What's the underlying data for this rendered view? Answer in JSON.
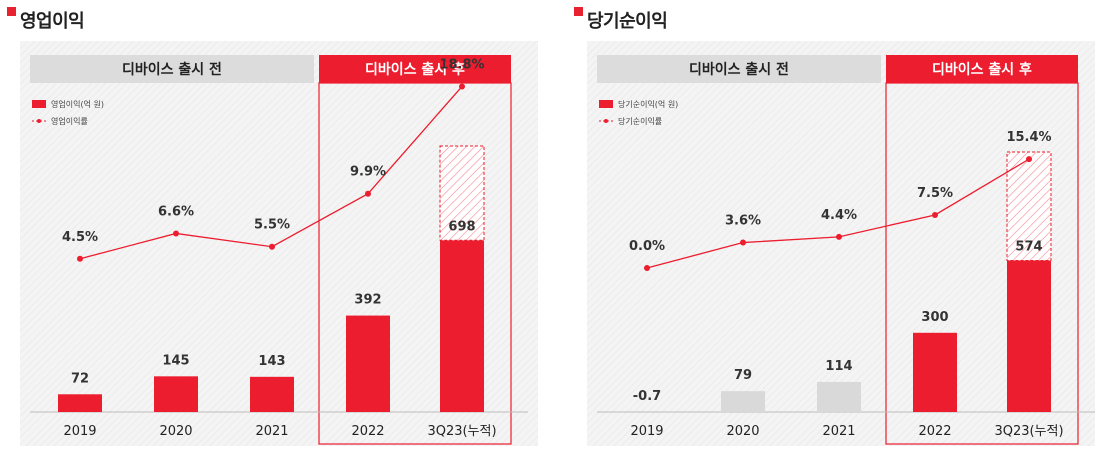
{
  "colors": {
    "accent": "#ec1d2e",
    "before_bar": "#d9d9d9",
    "header_before": "#dcdcdc"
  },
  "charts": [
    {
      "title": "영업이익",
      "header_before": "디바이스 출시 전",
      "header_after": "디바이스 출시 후",
      "legend_bar": "영업이익(억 원)",
      "legend_line": "영업이익률"
    },
    {
      "title": "당기순이익",
      "header_before": "디바이스 출시 전",
      "header_after": "디바이스 출시 후",
      "legend_bar": "당기순이익(억 원)",
      "legend_line": "당기순이익률"
    }
  ],
  "chart_data": [
    {
      "type": "bar",
      "title": "영업이익",
      "categories": [
        "2019",
        "2020",
        "2021",
        "2022",
        "3Q23(누적)"
      ],
      "series": [
        {
          "name": "영업이익(억 원)",
          "values": [
            72,
            145,
            143,
            392,
            698
          ],
          "labels": [
            "72",
            "145",
            "143",
            "392",
            "698"
          ]
        },
        {
          "name": "영업이익률",
          "type": "line",
          "values": [
            4.5,
            6.6,
            5.5,
            9.9,
            18.8
          ],
          "labels": [
            "4.5%",
            "6.6%",
            "5.5%",
            "9.9%",
            "18.8%"
          ]
        }
      ],
      "bar_fill": [
        "accent",
        "accent",
        "accent",
        "accent",
        "accent"
      ],
      "hatched_extension_on_last": true
    },
    {
      "type": "bar",
      "title": "당기순이익",
      "categories": [
        "2019",
        "2020",
        "2021",
        "2022",
        "3Q23(누적)"
      ],
      "series": [
        {
          "name": "당기순이익(억 원)",
          "values": [
            -0.7,
            79,
            114,
            300,
            574
          ],
          "labels": [
            "-0.7",
            "79",
            "114",
            "300",
            "574"
          ]
        },
        {
          "name": "당기순이익률",
          "type": "line",
          "values": [
            0.0,
            3.6,
            4.4,
            7.5,
            15.4
          ],
          "labels": [
            "0.0%",
            "3.6%",
            "4.4%",
            "7.5%",
            "15.4%"
          ]
        }
      ],
      "bar_fill": [
        "gray",
        "gray",
        "gray",
        "accent",
        "accent"
      ],
      "hatched_extension_on_last": true
    }
  ]
}
